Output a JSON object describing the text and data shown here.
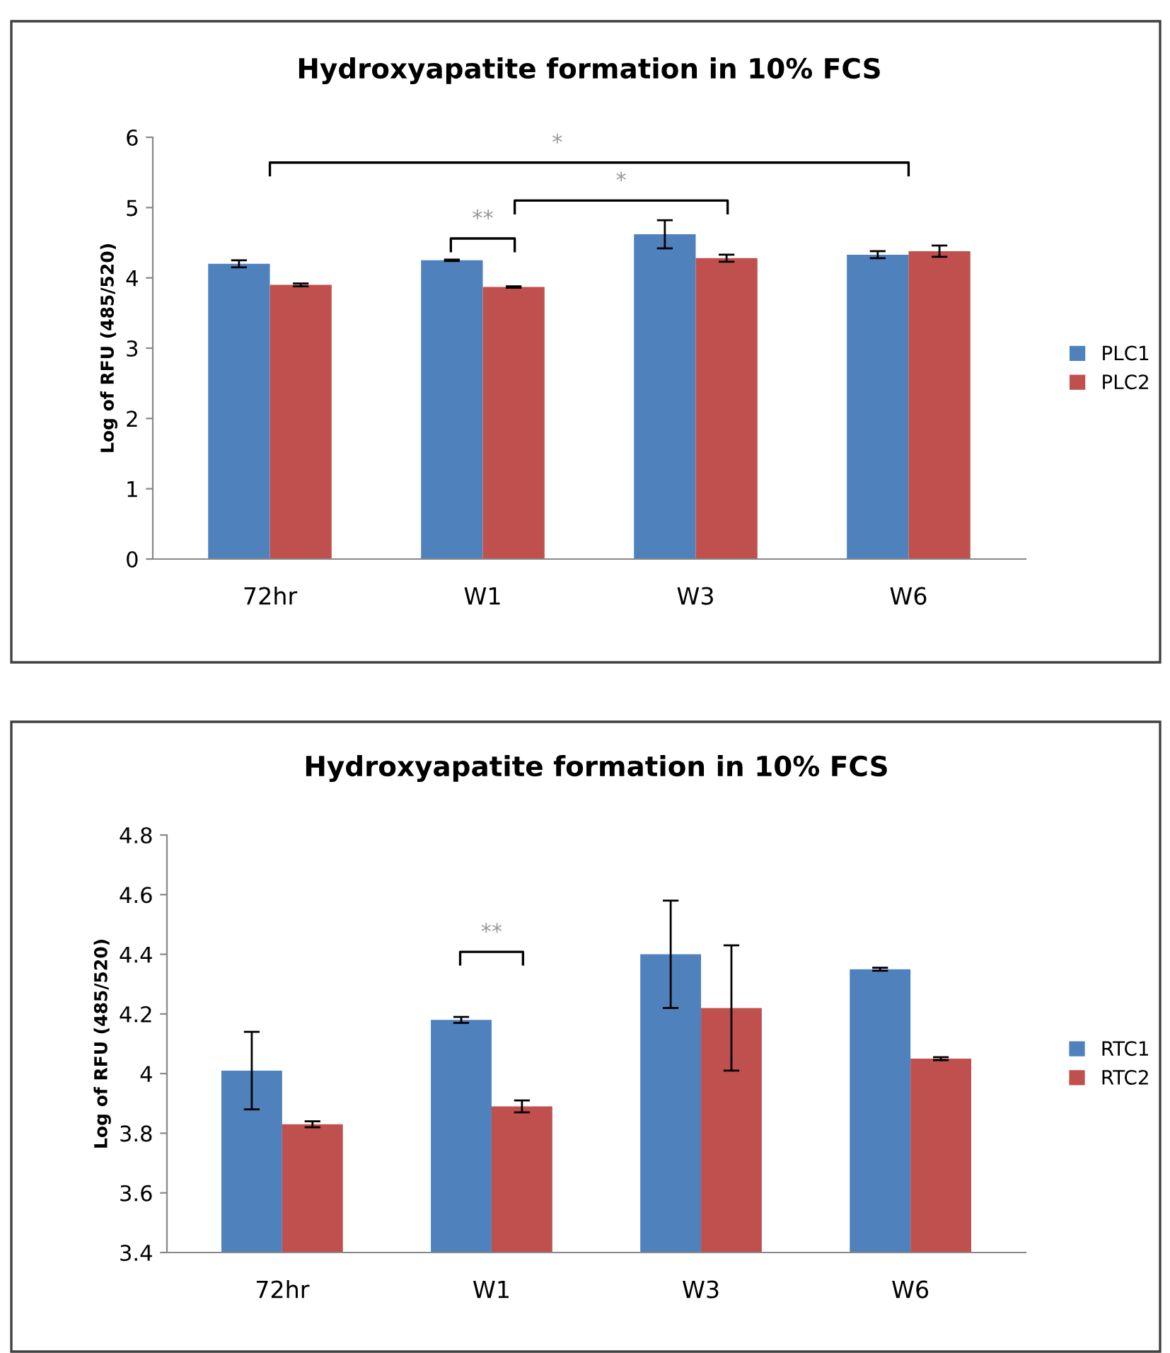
{
  "chart_data": [
    {
      "type": "bar",
      "title": "Hydroxyapatite formation in 10% FCS",
      "ylabel": "Log of RFU (485/520)",
      "categories": [
        "72hr",
        "W1",
        "W3",
        "W6"
      ],
      "series": [
        {
          "name": "PLC1",
          "color": "#4f81bd",
          "values": [
            4.2,
            4.25,
            4.62,
            4.33
          ],
          "errors": [
            0.05,
            0.01,
            0.2,
            0.05
          ]
        },
        {
          "name": "PLC2",
          "color": "#c0504d",
          "values": [
            3.9,
            3.87,
            4.28,
            4.38
          ],
          "errors": [
            0.02,
            0.01,
            0.05,
            0.08
          ]
        }
      ],
      "ylim": [
        0,
        6
      ],
      "yticks": [
        0,
        1,
        2,
        3,
        4,
        5,
        6
      ],
      "grid": false,
      "legend": "right",
      "annotations": [
        "*",
        "*",
        "**"
      ]
    },
    {
      "type": "bar",
      "title": "Hydroxyapatite formation in 10% FCS",
      "ylabel": "Log of RFU (485/520)",
      "categories": [
        "72hr",
        "W1",
        "W3",
        "W6"
      ],
      "series": [
        {
          "name": "RTC1",
          "color": "#4f81bd",
          "values": [
            4.01,
            4.18,
            4.4,
            4.35
          ],
          "errors": [
            0.13,
            0.01,
            0.18,
            0.005
          ]
        },
        {
          "name": "RTC2",
          "color": "#c0504d",
          "values": [
            3.83,
            3.89,
            4.22,
            4.05
          ],
          "errors": [
            0.01,
            0.02,
            0.21,
            0.005
          ]
        }
      ],
      "ylim": [
        3.4,
        4.8
      ],
      "yticks": [
        3.4,
        3.6,
        3.8,
        4,
        4.2,
        4.4,
        4.6,
        4.8
      ],
      "grid": false,
      "legend": "right",
      "annotations": [
        "**"
      ]
    }
  ]
}
